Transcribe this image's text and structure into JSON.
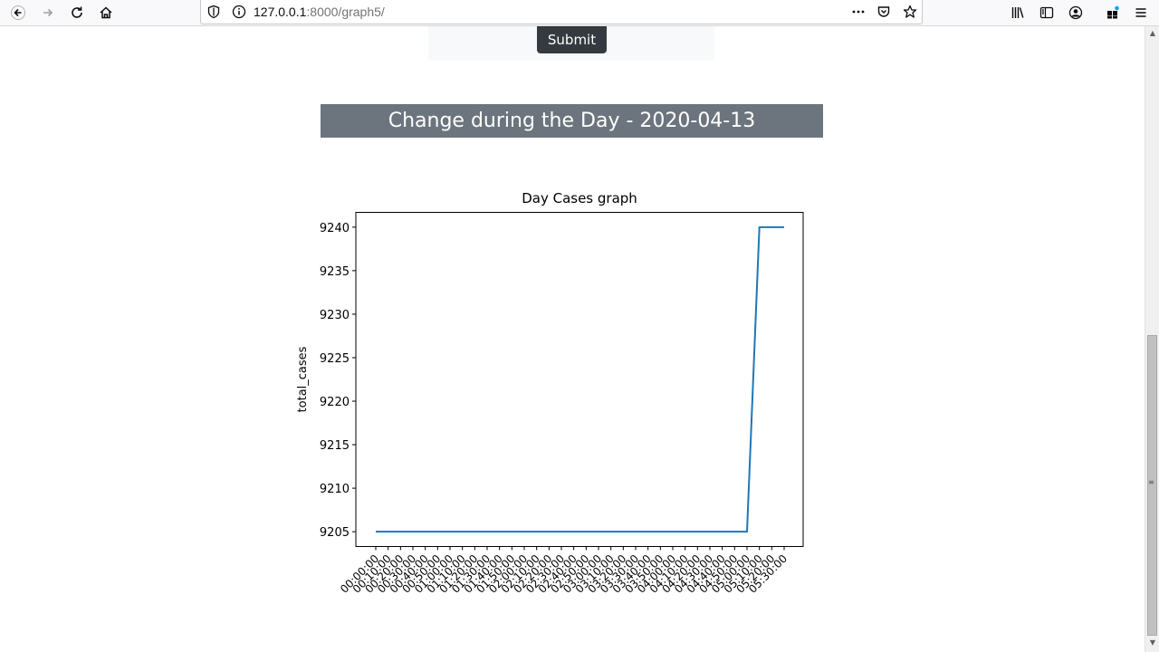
{
  "browser": {
    "url_host": "127.0.0.1",
    "url_path": ":8000/graph5/"
  },
  "page": {
    "submit_label": "Submit",
    "header": "Change during the Day - 2020-04-13"
  },
  "chart_data": {
    "type": "line",
    "title": "Day Cases graph",
    "xlabel": "",
    "ylabel": "total_cases",
    "ylim": [
      9203.3,
      9241.7
    ],
    "yticks": [
      9205,
      9210,
      9215,
      9220,
      9225,
      9230,
      9235,
      9240
    ],
    "series_color": "#1f77b4",
    "x": [
      "00:00:00",
      "00:10:00",
      "00:20:00",
      "00:30:00",
      "00:40:00",
      "00:50:00",
      "01:00:00",
      "01:10:00",
      "01:20:00",
      "01:30:00",
      "01:40:00",
      "01:50:00",
      "02:00:00",
      "02:10:00",
      "02:20:00",
      "02:30:00",
      "02:40:00",
      "02:50:00",
      "03:00:00",
      "03:10:00",
      "03:20:00",
      "03:30:00",
      "03:40:00",
      "03:50:00",
      "04:00:00",
      "04:10:00",
      "04:20:00",
      "04:30:00",
      "04:40:00",
      "04:50:00",
      "05:00:00",
      "05:10:00",
      "05:20:00",
      "05:30:00"
    ],
    "series": [
      {
        "values": [
          9205,
          9205,
          9205,
          9205,
          9205,
          9205,
          9205,
          9205,
          9205,
          9205,
          9205,
          9205,
          9205,
          9205,
          9205,
          9205,
          9205,
          9205,
          9205,
          9205,
          9205,
          9205,
          9205,
          9205,
          9205,
          9205,
          9205,
          9205,
          9205,
          9205,
          9205,
          9240,
          9240,
          9240
        ]
      }
    ]
  }
}
